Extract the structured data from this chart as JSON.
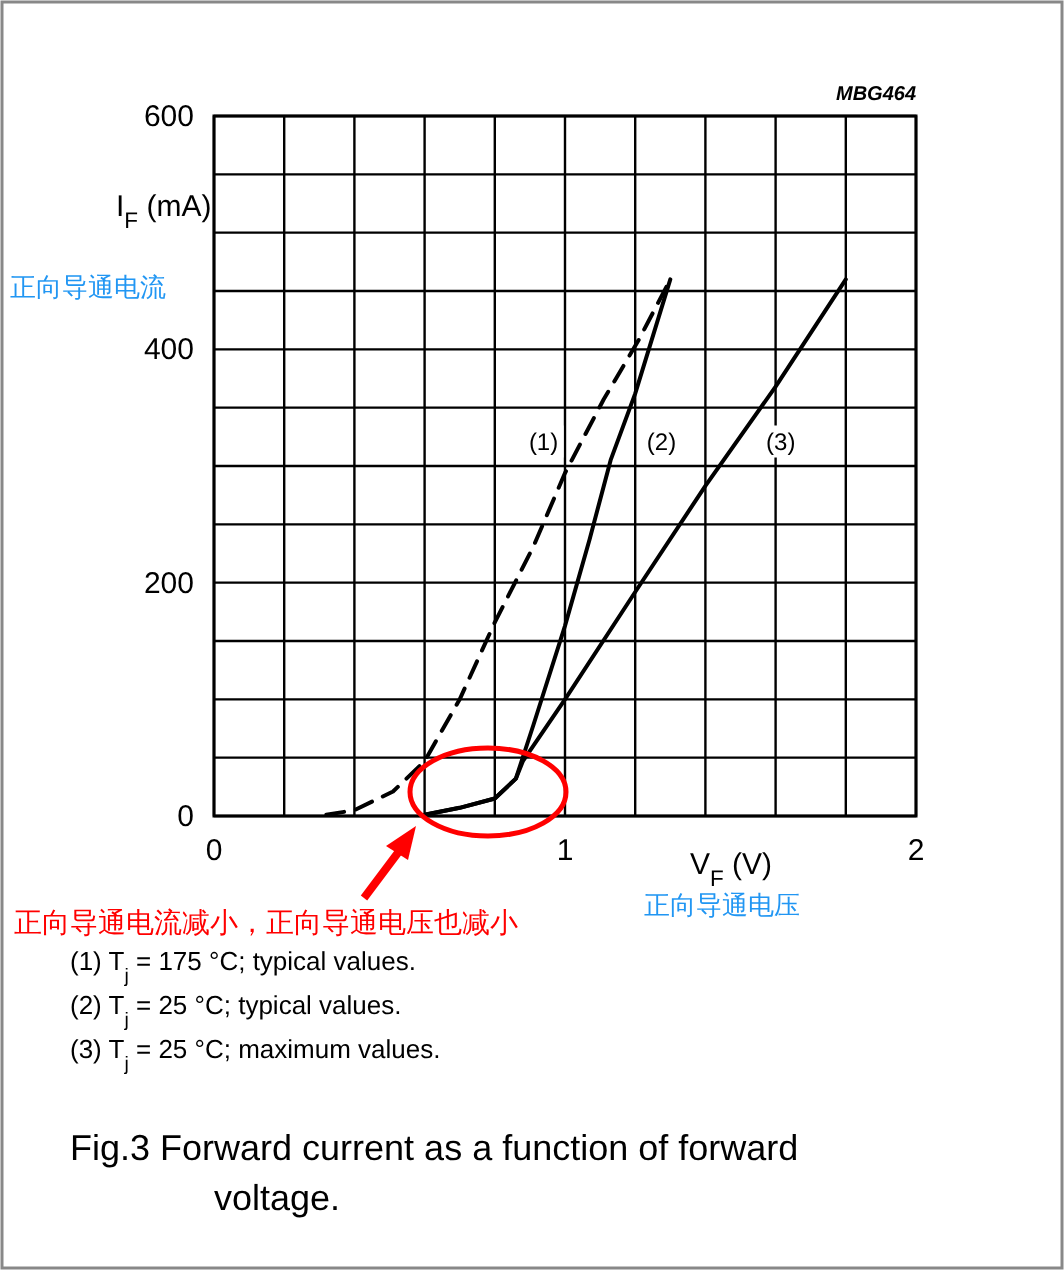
{
  "chart_data": {
    "type": "line",
    "title": "Fig.3    Forward current as a function of forward voltage.",
    "xlabel": "V$_{F}$ (V)",
    "ylabel": "I$_{F}$ (mA)",
    "annotations": [
      "MBG464",
      "正向导通电流",
      "正向导通电压",
      "正向导通电流减小，正向导通电压也减小",
      "(1)   T$_{j}$ = 175 °C; typical values.",
      "(2)   T$_{j}$ = 25 °C; typical values.",
      "(3)   T$_{j}$ = 25 °C; maximum values."
    ],
    "xlim": [
      0,
      2
    ],
    "ylim": [
      0,
      600
    ],
    "xticks": [
      0,
      {
        "value": 0.2,
        "label": null
      },
      {
        "value": 0.4,
        "label": null
      },
      {
        "value": 0.6,
        "label": null
      },
      {
        "value": 0.8,
        "label": null
      },
      1,
      {
        "value": 1.2,
        "label": null
      },
      {
        "value": 1.4,
        "label": null
      },
      {
        "value": 1.6,
        "label": null
      },
      {
        "value": 1.8,
        "label": null
      },
      2
    ],
    "yticks": [
      0,
      {
        "value": 50,
        "label": null
      },
      {
        "value": 100,
        "label": null
      },
      {
        "value": 150,
        "label": null
      },
      200,
      {
        "value": 250,
        "label": null
      },
      {
        "value": 300,
        "label": null
      },
      {
        "value": 350,
        "label": null
      },
      400,
      {
        "value": 450,
        "label": null
      },
      {
        "value": 500,
        "label": null
      },
      {
        "value": 550,
        "label": null
      },
      600
    ],
    "grid": true,
    "series": [
      {
        "name": "(1)",
        "color": "#000000",
        "line_style": "dashed",
        "x": [
          0.32,
          0.4,
          0.51,
          0.6,
          0.7,
          0.8,
          0.91,
          1.0,
          1.11,
          1.21,
          1.3
        ],
        "values": [
          1,
          5,
          21,
          47,
          100,
          166,
          231,
          294,
          357,
          408,
          460
        ]
      },
      {
        "name": "(2)",
        "color": "#000000",
        "line_style": "solid",
        "x": [
          0.6,
          0.7,
          0.8,
          0.86,
          0.91,
          1.0,
          1.07,
          1.13,
          1.2,
          1.3
        ],
        "values": [
          1,
          7,
          15,
          32,
          78,
          163,
          237,
          305,
          362,
          460
        ]
      },
      {
        "name": "(3)",
        "color": "#000000",
        "line_style": "solid",
        "x": [
          0.6,
          0.7,
          0.8,
          0.86,
          0.88,
          1.0,
          1.2,
          1.4,
          1.6,
          1.8
        ],
        "values": [
          1,
          7,
          15,
          32,
          47,
          100,
          192,
          283,
          368,
          460
        ]
      }
    ]
  }
}
